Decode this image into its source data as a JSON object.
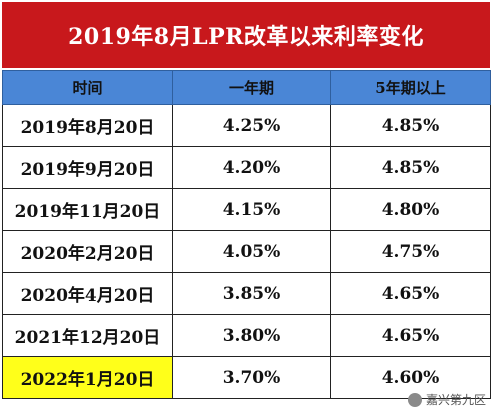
{
  "title": "2019年8月LPR改革以来利率变化",
  "table": {
    "headers": [
      "时间",
      "一年期",
      "5年期以上"
    ],
    "rows": [
      {
        "date": "2019年8月20日",
        "one_year": "4.25%",
        "five_year": "4.85%"
      },
      {
        "date": "2019年9月20日",
        "one_year": "4.20%",
        "five_year": "4.85%"
      },
      {
        "date": "2019年11月20日",
        "one_year": "4.15%",
        "five_year": "4.80%"
      },
      {
        "date": "2020年2月20日",
        "one_year": "4.05%",
        "five_year": "4.75%"
      },
      {
        "date": "2020年4月20日",
        "one_year": "3.85%",
        "five_year": "4.65%"
      },
      {
        "date": "2021年12月20日",
        "one_year": "3.80%",
        "five_year": "4.65%"
      },
      {
        "date": "2022年1月20日",
        "one_year": "3.70%",
        "five_year": "4.60%"
      }
    ]
  },
  "watermark": {
    "text": "嘉兴第九区",
    "icon": "wechat-account-icon"
  },
  "colors": {
    "title_bg": "#c8181c",
    "header_bg": "#4a86d6",
    "highlight": "#ffff1a"
  }
}
